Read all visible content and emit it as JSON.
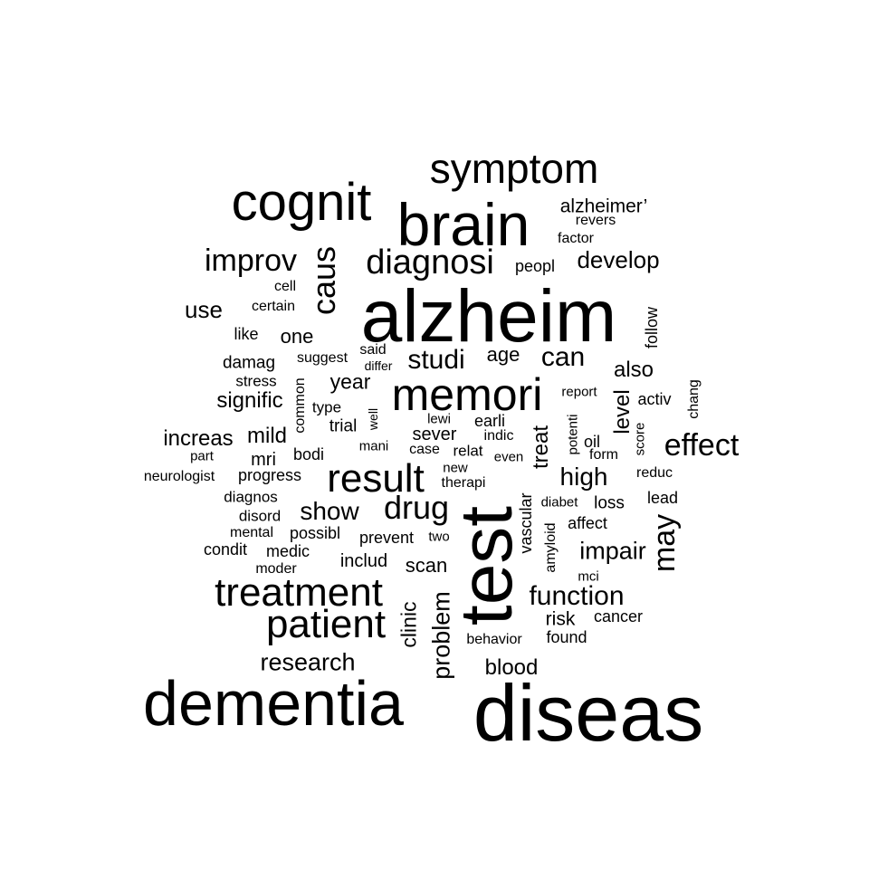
{
  "word_cloud": {
    "text_color": "#000000",
    "background": "#ffffff",
    "words": [
      {
        "text": "diseas",
        "weight": 1.0,
        "rotated": false
      },
      {
        "text": "alzheim",
        "weight": 0.95,
        "rotated": false
      },
      {
        "text": "dementia",
        "weight": 0.85,
        "rotated": false
      },
      {
        "text": "test",
        "weight": 0.8,
        "rotated": true
      },
      {
        "text": "brain",
        "weight": 0.72,
        "rotated": false
      },
      {
        "text": "cognit",
        "weight": 0.66,
        "rotated": false
      },
      {
        "text": "memori",
        "weight": 0.56,
        "rotated": false
      },
      {
        "text": "symptom",
        "weight": 0.52,
        "rotated": false
      },
      {
        "text": "result",
        "weight": 0.48,
        "rotated": false
      },
      {
        "text": "treatment",
        "weight": 0.48,
        "rotated": false
      },
      {
        "text": "patient",
        "weight": 0.48,
        "rotated": false
      },
      {
        "text": "diagnosi",
        "weight": 0.42,
        "rotated": false
      },
      {
        "text": "drug",
        "weight": 0.4,
        "rotated": false
      },
      {
        "text": "caus",
        "weight": 0.4,
        "rotated": true
      },
      {
        "text": "improv",
        "weight": 0.39,
        "rotated": false
      },
      {
        "text": "may",
        "weight": 0.38,
        "rotated": true
      },
      {
        "text": "effect",
        "weight": 0.37,
        "rotated": false
      },
      {
        "text": "function",
        "weight": 0.33,
        "rotated": false
      },
      {
        "text": "studi",
        "weight": 0.32,
        "rotated": false
      },
      {
        "text": "can",
        "weight": 0.32,
        "rotated": false
      },
      {
        "text": "show",
        "weight": 0.31,
        "rotated": false
      },
      {
        "text": "high",
        "weight": 0.31,
        "rotated": false
      },
      {
        "text": "research",
        "weight": 0.3,
        "rotated": false
      },
      {
        "text": "impair",
        "weight": 0.3,
        "rotated": false
      },
      {
        "text": "problem",
        "weight": 0.3,
        "rotated": true
      },
      {
        "text": "develop",
        "weight": 0.28,
        "rotated": false
      },
      {
        "text": "use",
        "weight": 0.29,
        "rotated": false
      },
      {
        "text": "signific",
        "weight": 0.26,
        "rotated": false
      },
      {
        "text": "increas",
        "weight": 0.26,
        "rotated": false
      },
      {
        "text": "mild",
        "weight": 0.26,
        "rotated": false
      },
      {
        "text": "also",
        "weight": 0.26,
        "rotated": false
      },
      {
        "text": "year",
        "weight": 0.25,
        "rotated": false
      },
      {
        "text": "level",
        "weight": 0.25,
        "rotated": true
      },
      {
        "text": "treat",
        "weight": 0.25,
        "rotated": true
      },
      {
        "text": "clinic",
        "weight": 0.25,
        "rotated": true
      },
      {
        "text": "blood",
        "weight": 0.25,
        "rotated": false
      },
      {
        "text": "age",
        "weight": 0.24,
        "rotated": false
      },
      {
        "text": "scan",
        "weight": 0.24,
        "rotated": false
      },
      {
        "text": "alzheimer’",
        "weight": 0.23,
        "rotated": false
      },
      {
        "text": "one",
        "weight": 0.23,
        "rotated": false
      },
      {
        "text": "risk",
        "weight": 0.23,
        "rotated": false
      },
      {
        "text": "includ",
        "weight": 0.22,
        "rotated": false
      },
      {
        "text": "sever",
        "weight": 0.22,
        "rotated": false
      },
      {
        "text": "mri",
        "weight": 0.22,
        "rotated": false
      },
      {
        "text": "trial",
        "weight": 0.21,
        "rotated": false
      },
      {
        "text": "damag",
        "weight": 0.21,
        "rotated": false
      },
      {
        "text": "peopl",
        "weight": 0.2,
        "rotated": false
      },
      {
        "text": "loss",
        "weight": 0.2,
        "rotated": false
      },
      {
        "text": "prevent",
        "weight": 0.2,
        "rotated": false
      },
      {
        "text": "medic",
        "weight": 0.2,
        "rotated": false
      },
      {
        "text": "progress",
        "weight": 0.2,
        "rotated": false
      },
      {
        "text": "possibl",
        "weight": 0.2,
        "rotated": false
      },
      {
        "text": "condit",
        "weight": 0.2,
        "rotated": false
      },
      {
        "text": "earli",
        "weight": 0.2,
        "rotated": false
      },
      {
        "text": "activ",
        "weight": 0.2,
        "rotated": false
      },
      {
        "text": "follow",
        "weight": 0.19,
        "rotated": true
      },
      {
        "text": "vascular",
        "weight": 0.19,
        "rotated": true
      },
      {
        "text": "like",
        "weight": 0.19,
        "rotated": false
      },
      {
        "text": "bodi",
        "weight": 0.19,
        "rotated": false
      },
      {
        "text": "found",
        "weight": 0.19,
        "rotated": false
      },
      {
        "text": "oil",
        "weight": 0.19,
        "rotated": false
      },
      {
        "text": "affect",
        "weight": 0.19,
        "rotated": false
      },
      {
        "text": "cancer",
        "weight": 0.19,
        "rotated": false
      },
      {
        "text": "lead",
        "weight": 0.19,
        "rotated": false
      },
      {
        "text": "diagnos",
        "weight": 0.18,
        "rotated": false
      },
      {
        "text": "disord",
        "weight": 0.18,
        "rotated": false
      },
      {
        "text": "stress",
        "weight": 0.18,
        "rotated": false
      },
      {
        "text": "relat",
        "weight": 0.18,
        "rotated": false
      },
      {
        "text": "type",
        "weight": 0.18,
        "rotated": false
      },
      {
        "text": "reduc",
        "weight": 0.17,
        "rotated": false
      },
      {
        "text": "factor",
        "weight": 0.17,
        "rotated": false
      },
      {
        "text": "revers",
        "weight": 0.17,
        "rotated": false
      },
      {
        "text": "amyloid",
        "weight": 0.17,
        "rotated": true
      },
      {
        "text": "case",
        "weight": 0.17,
        "rotated": false
      },
      {
        "text": "therapi",
        "weight": 0.17,
        "rotated": false
      },
      {
        "text": "indic",
        "weight": 0.17,
        "rotated": false
      },
      {
        "text": "form",
        "weight": 0.17,
        "rotated": false
      },
      {
        "text": "mental",
        "weight": 0.17,
        "rotated": false
      },
      {
        "text": "chang",
        "weight": 0.17,
        "rotated": true
      },
      {
        "text": "behavior",
        "weight": 0.16,
        "rotated": false
      },
      {
        "text": "common",
        "weight": 0.16,
        "rotated": true
      },
      {
        "text": "neurologist",
        "weight": 0.16,
        "rotated": false
      },
      {
        "text": "moder",
        "weight": 0.16,
        "rotated": false
      },
      {
        "text": "certain",
        "weight": 0.16,
        "rotated": false
      },
      {
        "text": "cell",
        "weight": 0.16,
        "rotated": false
      },
      {
        "text": "suggest",
        "weight": 0.16,
        "rotated": false
      },
      {
        "text": "said",
        "weight": 0.16,
        "rotated": false
      },
      {
        "text": "report",
        "weight": 0.16,
        "rotated": false
      },
      {
        "text": "diabet",
        "weight": 0.16,
        "rotated": false
      },
      {
        "text": "mci",
        "weight": 0.16,
        "rotated": false
      },
      {
        "text": "lewi",
        "weight": 0.15,
        "rotated": false
      },
      {
        "text": "two",
        "weight": 0.15,
        "rotated": false
      },
      {
        "text": "mani",
        "weight": 0.15,
        "rotated": false
      },
      {
        "text": "new",
        "weight": 0.15,
        "rotated": false
      },
      {
        "text": "even",
        "weight": 0.15,
        "rotated": false
      },
      {
        "text": "part",
        "weight": 0.15,
        "rotated": false
      },
      {
        "text": "potenti",
        "weight": 0.15,
        "rotated": true
      },
      {
        "text": "score",
        "weight": 0.15,
        "rotated": true
      },
      {
        "text": "differ",
        "weight": 0.15,
        "rotated": false
      },
      {
        "text": "well",
        "weight": 0.15,
        "rotated": true
      }
    ]
  }
}
